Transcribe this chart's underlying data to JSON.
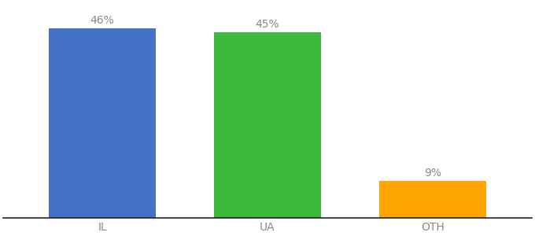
{
  "categories": [
    "IL",
    "UA",
    "OTH"
  ],
  "values": [
    46,
    45,
    9
  ],
  "bar_colors": [
    "#4472C4",
    "#3CB93C",
    "#FFA500"
  ],
  "labels": [
    "46%",
    "45%",
    "9%"
  ],
  "ylim": [
    0,
    52
  ],
  "bar_width": 0.65,
  "label_fontsize": 10,
  "tick_fontsize": 10,
  "background_color": "#ffffff",
  "label_color": "#888888",
  "tick_color": "#888888"
}
